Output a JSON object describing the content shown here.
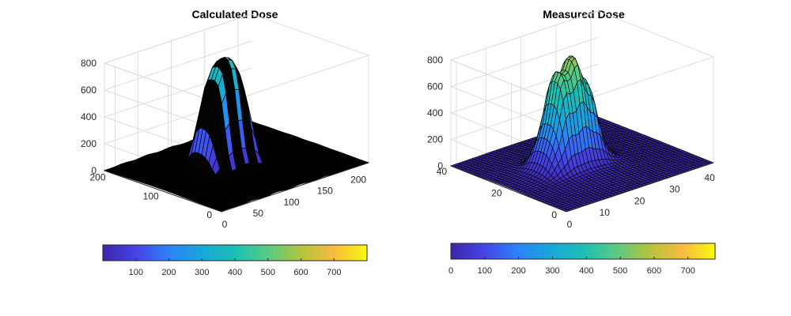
{
  "chart_data": [
    {
      "type": "surface",
      "title": "Calculated Dose",
      "xlabel": "",
      "ylabel": "",
      "zlabel": "",
      "x_ticks": [
        0,
        50,
        100,
        150,
        200
      ],
      "y_ticks": [
        0,
        100,
        200
      ],
      "z_ticks": [
        0,
        200,
        400,
        600,
        800
      ],
      "xlim": [
        0,
        220
      ],
      "ylim": [
        0,
        220
      ],
      "zlim": [
        0,
        800
      ],
      "peak_value": 760,
      "peak_center": [
        95,
        115
      ],
      "grid": true,
      "edge_color": "#000000",
      "colormap": "parula",
      "colorbar": {
        "orientation": "horizontal",
        "location": "bottom",
        "ticks": [
          100,
          200,
          300,
          400,
          500,
          600,
          700
        ],
        "range": [
          0,
          800
        ]
      }
    },
    {
      "type": "surface",
      "title": "Measured Dose",
      "xlabel": "",
      "ylabel": "",
      "zlabel": "",
      "x_ticks": [
        0,
        10,
        20,
        30,
        40
      ],
      "y_ticks": [
        0,
        20,
        40
      ],
      "z_ticks": [
        0,
        200,
        400,
        600,
        800
      ],
      "xlim": [
        0,
        42
      ],
      "ylim": [
        0,
        42
      ],
      "zlim": [
        0,
        800
      ],
      "peak_value": 780,
      "peak_center": [
        18,
        22
      ],
      "grid": true,
      "edge_color": "#000000",
      "colormap": "parula",
      "colorbar": {
        "orientation": "horizontal",
        "location": "bottom",
        "ticks": [
          0,
          100,
          200,
          300,
          400,
          500,
          600,
          700
        ],
        "range": [
          0,
          780
        ]
      }
    }
  ],
  "colors": {
    "parula": [
      "#3e26a8",
      "#4543e7",
      "#2d81fa",
      "#18a7da",
      "#1bbfb5",
      "#58ca83",
      "#b2c43d",
      "#f8ba3e",
      "#f8fa0d"
    ]
  }
}
